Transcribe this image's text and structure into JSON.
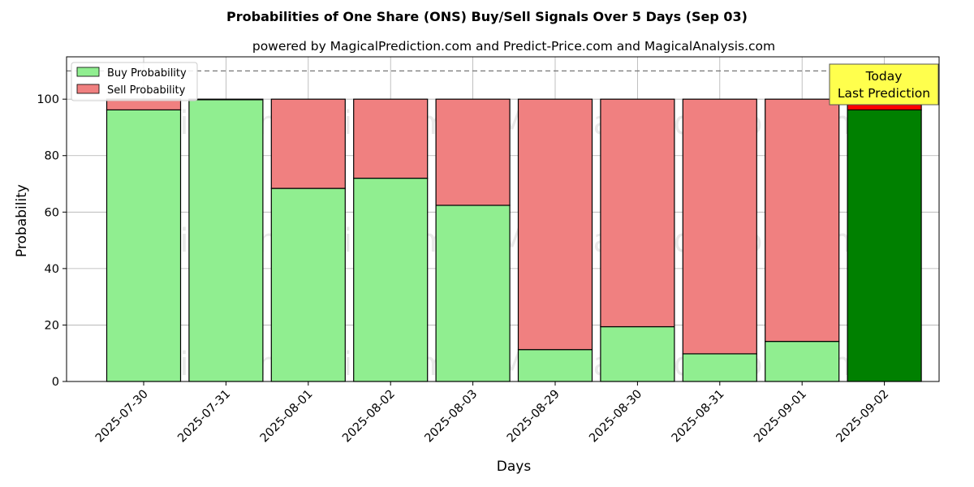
{
  "chart_data": {
    "type": "bar",
    "stacked": true,
    "title": "Probabilities of One Share (ONS) Buy/Sell Signals Over 5 Days (Sep 03)",
    "subtitle": "powered by MagicalPrediction.com and Predict-Price.com and MagicalAnalysis.com",
    "xlabel": "Days",
    "ylabel": "Probability",
    "ylim": [
      0,
      115
    ],
    "yticks": [
      0,
      20,
      40,
      60,
      80,
      100
    ],
    "grid": true,
    "legend_position": "top-left",
    "reference_line": 110,
    "categories": [
      "2025-07-30",
      "2025-07-31",
      "2025-08-01",
      "2025-08-02",
      "2025-08-03",
      "2025-08-29",
      "2025-08-30",
      "2025-08-31",
      "2025-09-01",
      "2025-09-02"
    ],
    "series": [
      {
        "name": "Buy Probability",
        "values": [
          96.2,
          99.8,
          68.4,
          72.0,
          62.4,
          11.3,
          19.4,
          9.8,
          14.2,
          96.2
        ],
        "color": "#90ee90",
        "highlight_color": "#008000"
      },
      {
        "name": "Sell Probability",
        "values": [
          3.8,
          0.2,
          31.6,
          28.0,
          37.6,
          88.7,
          80.6,
          90.2,
          85.8,
          3.8
        ],
        "color": "#f08080",
        "highlight_color": "#ff0000"
      }
    ],
    "highlight_index": 9,
    "annotation": {
      "lines": [
        "Today",
        "Last Prediction"
      ],
      "background": "#ffff4d"
    },
    "watermarks": [
      "MagicalAnalysis.com",
      "MagicalPrediction.com"
    ]
  }
}
